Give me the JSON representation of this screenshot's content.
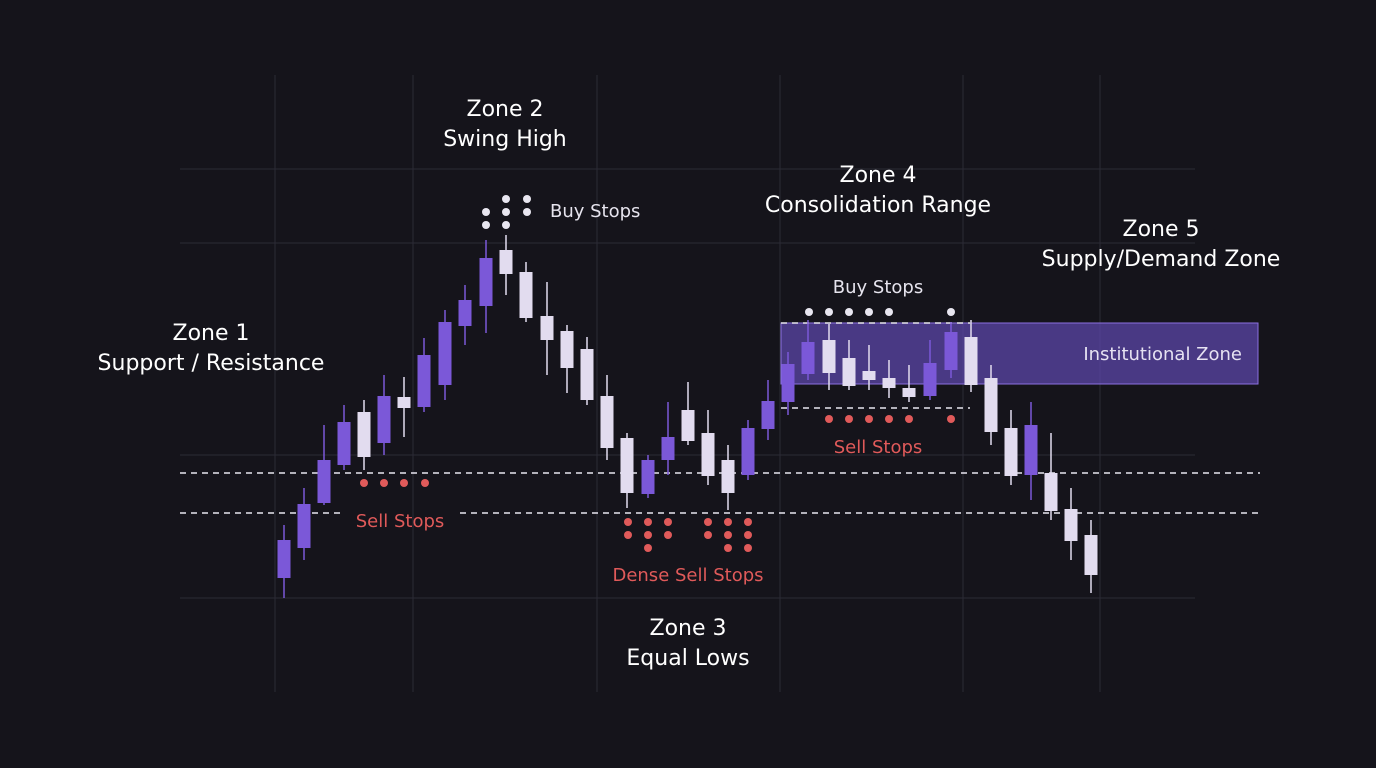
{
  "zones": [
    {
      "title": "Zone 1",
      "subtitle": "Support / Resistance"
    },
    {
      "title": "Zone 2",
      "subtitle": "Swing High"
    },
    {
      "title": "Zone 3",
      "subtitle": "Equal Lows"
    },
    {
      "title": "Zone 4",
      "subtitle": "Consolidation Range"
    },
    {
      "title": "Zone 5",
      "subtitle": "Supply/Demand Zone"
    }
  ],
  "labels": {
    "buy_stops_1": "Buy Stops",
    "buy_stops_2": "Buy Stops",
    "sell_stops_1": "Sell Stops",
    "sell_stops_2": "Sell Stops",
    "dense_sell_stops": "Dense Sell Stops",
    "institutional_zone": "Institutional Zone"
  }
}
